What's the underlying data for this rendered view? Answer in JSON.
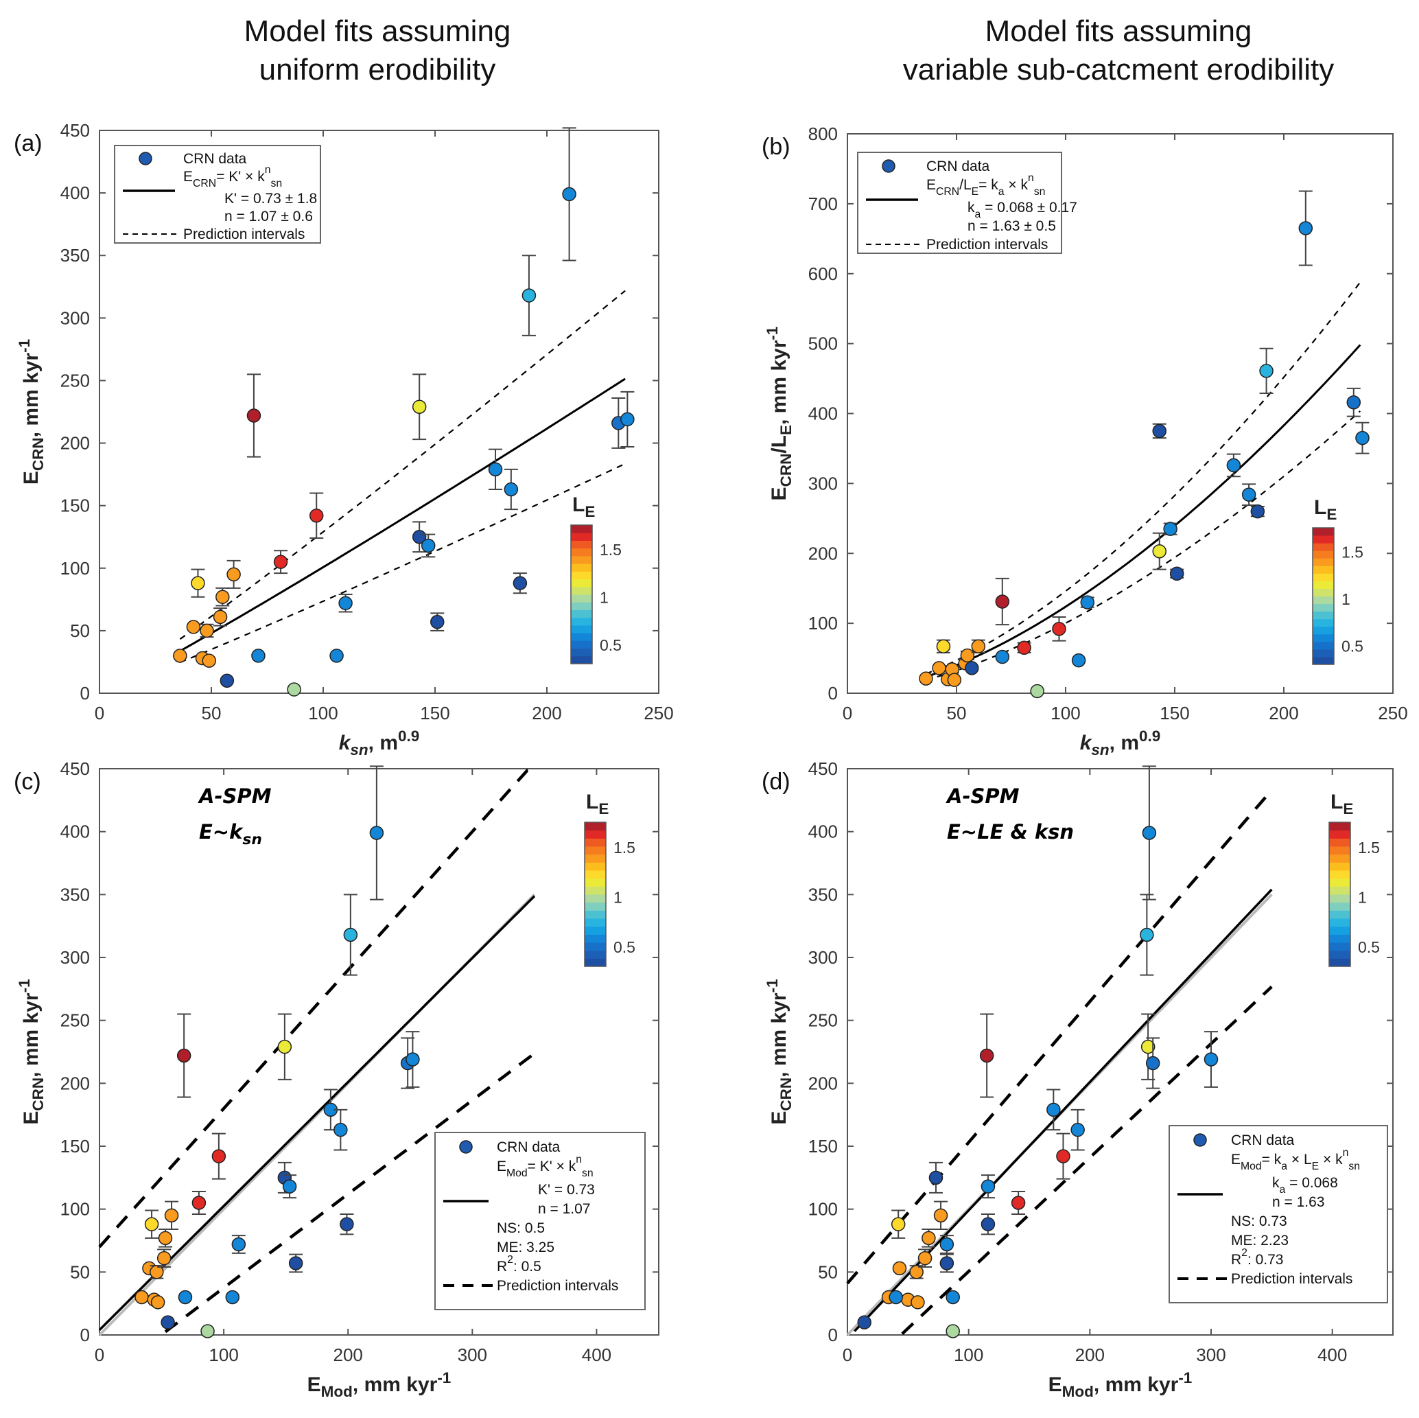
{
  "titles": {
    "left_line1": "Model fits assuming",
    "left_line2": "uniform erodibility",
    "right_line1": "Model fits assuming",
    "right_line2": "variable sub-catcment erodibility"
  },
  "colorbar": {
    "label": "L",
    "label_sub": "E",
    "range": [
      0.3,
      1.75
    ],
    "ticks": [
      "0.5",
      "1",
      "1.5"
    ],
    "tick_values": [
      0.5,
      1.0,
      1.5
    ],
    "colors": [
      "#1f4fa3",
      "#1d5fb5",
      "#1871c9",
      "#1386d8",
      "#17a0e0",
      "#29b4e0",
      "#4cc1d2",
      "#7fcfc0",
      "#acd9a0",
      "#cfe36a",
      "#ecea38",
      "#fcd92b",
      "#fcbe1e",
      "#f99b1f",
      "#f57d20",
      "#ef5a22",
      "#e12a26",
      "#b01f2a"
    ]
  },
  "chart_data": [
    {
      "id": "a",
      "type": "scatter",
      "panel_label": "(a)",
      "xlabel": "k",
      "xlabel_sub": "sn",
      "xlabel_rest": ", m",
      "xlabel_sup": "0.9",
      "ylabel": "E",
      "ylabel_sub": "CRN",
      "ylabel_rest": ", mm kyr",
      "ylabel_sup": "-1",
      "xlim": [
        0,
        250
      ],
      "ylim": [
        0,
        450
      ],
      "xticks": [
        0,
        50,
        100,
        150,
        200,
        250
      ],
      "yticks": [
        0,
        50,
        100,
        150,
        200,
        250,
        300,
        350,
        400,
        450
      ],
      "legend": {
        "position": "top-left",
        "entries": [
          {
            "type": "marker",
            "text": "CRN data"
          },
          {
            "type": "formula",
            "lhs": "E",
            "lhs_sub": "CRN",
            "rhs": "= K' × k",
            "rhs_sub": "sn",
            "rhs_sup": "n"
          },
          {
            "type": "line",
            "text": "K' = 0.73 ± 1.8"
          },
          {
            "type": "text",
            "text": "n = 1.07 ± 0.6"
          },
          {
            "type": "dashed",
            "text": "Prediction intervals"
          }
        ]
      },
      "fit": {
        "K": 0.73,
        "n": 1.07,
        "upper_factor": 1.28,
        "lower_factor": 0.73,
        "x_range": [
          36,
          235
        ]
      },
      "points": [
        {
          "x": 36,
          "y": 30,
          "err": 0,
          "le": 1.42
        },
        {
          "x": 42,
          "y": 53,
          "err": 0,
          "le": 1.42
        },
        {
          "x": 44,
          "y": 88,
          "err": 11,
          "le": 1.25
        },
        {
          "x": 46,
          "y": 28,
          "err": 0,
          "le": 1.42
        },
        {
          "x": 48,
          "y": 50,
          "err": 5,
          "le": 1.42
        },
        {
          "x": 49,
          "y": 26,
          "err": 0,
          "le": 1.42
        },
        {
          "x": 54,
          "y": 61,
          "err": 7,
          "le": 1.42
        },
        {
          "x": 55,
          "y": 77,
          "err": 7,
          "le": 1.42
        },
        {
          "x": 57,
          "y": 10,
          "err": 0,
          "le": 0.35
        },
        {
          "x": 60,
          "y": 95,
          "err": 11,
          "le": 1.42
        },
        {
          "x": 69,
          "y": 222,
          "err": 33,
          "le": 1.72
        },
        {
          "x": 71,
          "y": 30,
          "err": 0,
          "le": 0.62
        },
        {
          "x": 81,
          "y": 105,
          "err": 9,
          "le": 1.6
        },
        {
          "x": 87,
          "y": 3,
          "err": 0,
          "le": 0.95
        },
        {
          "x": 97,
          "y": 142,
          "err": 18,
          "le": 1.6
        },
        {
          "x": 106,
          "y": 30,
          "err": 0,
          "le": 0.62
        },
        {
          "x": 110,
          "y": 72,
          "err": 7,
          "le": 0.55
        },
        {
          "x": 143,
          "y": 229,
          "err": 26,
          "le": 1.12
        },
        {
          "x": 143,
          "y": 125,
          "err": 12,
          "le": 0.35
        },
        {
          "x": 147,
          "y": 118,
          "err": 9,
          "le": 0.55
        },
        {
          "x": 151,
          "y": 57,
          "err": 7,
          "le": 0.35
        },
        {
          "x": 177,
          "y": 179,
          "err": 16,
          "le": 0.62
        },
        {
          "x": 184,
          "y": 163,
          "err": 16,
          "le": 0.55
        },
        {
          "x": 188,
          "y": 88,
          "err": 8,
          "le": 0.35
        },
        {
          "x": 192,
          "y": 318,
          "err": 32,
          "le": 0.78
        },
        {
          "x": 210,
          "y": 399,
          "err": 53,
          "le": 0.62
        },
        {
          "x": 232,
          "y": 216,
          "err": 20,
          "le": 0.5
        },
        {
          "x": 236,
          "y": 219,
          "err": 22,
          "le": 0.62
        }
      ]
    },
    {
      "id": "b",
      "type": "scatter",
      "panel_label": "(b)",
      "xlabel": "k",
      "xlabel_sub": "sn",
      "xlabel_rest": ", m",
      "xlabel_sup": "0.9",
      "ylabel": "E",
      "ylabel_sub": "CRN",
      "ylabel_mid": "/L",
      "ylabel_sub2": "E",
      "ylabel_rest": ", mm kyr",
      "ylabel_sup": "-1",
      "xlim": [
        0,
        250
      ],
      "ylim": [
        0,
        800
      ],
      "xticks": [
        0,
        50,
        100,
        150,
        200,
        250
      ],
      "yticks": [
        0,
        100,
        200,
        300,
        400,
        500,
        600,
        700,
        800
      ],
      "legend": {
        "position": "top-left",
        "entries": [
          {
            "type": "marker",
            "text": "CRN data"
          },
          {
            "type": "formula",
            "lhs": "E",
            "lhs_sub": "CRN",
            "lhs_mid": "/L",
            "lhs_sub2": "E",
            "rhs": "= k",
            "rhs_sub1": "a",
            "rhs_mid": " × k",
            "rhs_sub": "sn",
            "rhs_sup": "n"
          },
          {
            "type": "line",
            "text": "= 0.068 ± 0.17",
            "prefix": "k",
            "prefix_sub": "a"
          },
          {
            "type": "text",
            "text": "n = 1.63 ± 0.5"
          },
          {
            "type": "dashed",
            "text": "Prediction intervals"
          }
        ]
      },
      "fit": {
        "K": 0.068,
        "n": 1.63,
        "upper_factor": 1.18,
        "lower_factor": 0.81,
        "x_range": [
          36,
          235
        ]
      },
      "points": [
        {
          "x": 36,
          "y": 21,
          "err": 0,
          "le": 1.42
        },
        {
          "x": 42,
          "y": 36,
          "err": 0,
          "le": 1.42
        },
        {
          "x": 44,
          "y": 67,
          "err": 9,
          "le": 1.25
        },
        {
          "x": 46,
          "y": 20,
          "err": 0,
          "le": 1.42
        },
        {
          "x": 48,
          "y": 34,
          "err": 5,
          "le": 1.42
        },
        {
          "x": 49,
          "y": 19,
          "err": 0,
          "le": 1.42
        },
        {
          "x": 54,
          "y": 43,
          "err": 6,
          "le": 1.42
        },
        {
          "x": 55,
          "y": 54,
          "err": 6,
          "le": 1.42
        },
        {
          "x": 57,
          "y": 36,
          "err": 0,
          "le": 0.35
        },
        {
          "x": 60,
          "y": 67,
          "err": 9,
          "le": 1.42
        },
        {
          "x": 71,
          "y": 131,
          "err": 33,
          "le": 1.72
        },
        {
          "x": 71,
          "y": 52,
          "err": 0,
          "le": 0.62
        },
        {
          "x": 81,
          "y": 65,
          "err": 7,
          "le": 1.6
        },
        {
          "x": 87,
          "y": 3,
          "err": 0,
          "le": 0.95
        },
        {
          "x": 97,
          "y": 92,
          "err": 17,
          "le": 1.6
        },
        {
          "x": 106,
          "y": 47,
          "err": 0,
          "le": 0.62
        },
        {
          "x": 110,
          "y": 130,
          "err": 7,
          "le": 0.55
        },
        {
          "x": 143,
          "y": 203,
          "err": 26,
          "le": 1.12
        },
        {
          "x": 143,
          "y": 375,
          "err": 10,
          "le": 0.35
        },
        {
          "x": 148,
          "y": 235,
          "err": 8,
          "le": 0.55
        },
        {
          "x": 151,
          "y": 171,
          "err": 6,
          "le": 0.35
        },
        {
          "x": 177,
          "y": 326,
          "err": 16,
          "le": 0.62
        },
        {
          "x": 184,
          "y": 284,
          "err": 15,
          "le": 0.55
        },
        {
          "x": 188,
          "y": 260,
          "err": 7,
          "le": 0.35
        },
        {
          "x": 192,
          "y": 461,
          "err": 32,
          "le": 0.78
        },
        {
          "x": 210,
          "y": 665,
          "err": 53,
          "le": 0.62
        },
        {
          "x": 232,
          "y": 416,
          "err": 20,
          "le": 0.5
        },
        {
          "x": 236,
          "y": 365,
          "err": 22,
          "le": 0.62
        }
      ]
    },
    {
      "id": "c",
      "type": "scatter",
      "panel_label": "(c)",
      "annotation_line1": "A-SPM",
      "annotation_line2": "E~k",
      "annotation_line2_sub": "sn",
      "xlabel": "E",
      "xlabel_sub": "Mod",
      "xlabel_rest": ", mm kyr",
      "xlabel_sup": "-1",
      "ylabel": "E",
      "ylabel_sub": "CRN",
      "ylabel_rest": ", mm kyr",
      "ylabel_sup": "-1",
      "xlim": [
        0,
        450
      ],
      "ylim": [
        0,
        450
      ],
      "xticks": [
        0,
        100,
        200,
        300,
        400
      ],
      "yticks": [
        0,
        50,
        100,
        150,
        200,
        250,
        300,
        350,
        400,
        450
      ],
      "legend": {
        "position": "bottom-right",
        "entries": [
          {
            "type": "marker",
            "text": "CRN data"
          },
          {
            "type": "formula",
            "lhs": "E",
            "lhs_sub": "Mod",
            "rhs": "= K' × k",
            "rhs_sub": "sn",
            "rhs_sup": "n"
          },
          {
            "type": "text",
            "text": "K' = 0.73"
          },
          {
            "type": "line",
            "text": "n = 1.07"
          },
          {
            "type": "text",
            "text": "NS: 0.5"
          },
          {
            "type": "text",
            "text": "ME: 3.25"
          },
          {
            "type": "text",
            "text": ": 0.5",
            "prefix": "R",
            "prefix_sup": "2"
          },
          {
            "type": "dashed",
            "text": "Prediction intervals"
          }
        ]
      },
      "fit_line": {
        "slope": 0.985,
        "intercept": 4,
        "x_range": [
          0,
          350
        ]
      },
      "one_to_one": {
        "x_range": [
          0,
          350
        ]
      },
      "pred_upper": {
        "slope": 1.1,
        "intercept": 70,
        "x_range": [
          0,
          350
        ]
      },
      "pred_lower": {
        "slope": 0.745,
        "intercept": -37,
        "x_range": [
          48,
          350
        ]
      },
      "points": [
        {
          "x": 34,
          "y": 30,
          "err": 0,
          "le": 1.42
        },
        {
          "x": 40,
          "y": 53,
          "err": 0,
          "le": 1.42
        },
        {
          "x": 42,
          "y": 88,
          "err": 11,
          "le": 1.25
        },
        {
          "x": 44,
          "y": 28,
          "err": 0,
          "le": 1.42
        },
        {
          "x": 46,
          "y": 50,
          "err": 5,
          "le": 1.42
        },
        {
          "x": 47,
          "y": 26,
          "err": 0,
          "le": 1.42
        },
        {
          "x": 52,
          "y": 61,
          "err": 7,
          "le": 1.42
        },
        {
          "x": 53,
          "y": 77,
          "err": 7,
          "le": 1.42
        },
        {
          "x": 55,
          "y": 10,
          "err": 0,
          "le": 0.35
        },
        {
          "x": 58,
          "y": 95,
          "err": 11,
          "le": 1.42
        },
        {
          "x": 68,
          "y": 222,
          "err": 33,
          "le": 1.72
        },
        {
          "x": 69,
          "y": 30,
          "err": 0,
          "le": 0.62
        },
        {
          "x": 80,
          "y": 105,
          "err": 9,
          "le": 1.6
        },
        {
          "x": 87,
          "y": 3,
          "err": 0,
          "le": 0.95
        },
        {
          "x": 96,
          "y": 142,
          "err": 18,
          "le": 1.6
        },
        {
          "x": 107,
          "y": 30,
          "err": 0,
          "le": 0.62
        },
        {
          "x": 112,
          "y": 72,
          "err": 7,
          "le": 0.55
        },
        {
          "x": 149,
          "y": 229,
          "err": 26,
          "le": 1.12
        },
        {
          "x": 149,
          "y": 125,
          "err": 12,
          "le": 0.35
        },
        {
          "x": 153,
          "y": 118,
          "err": 9,
          "le": 0.55
        },
        {
          "x": 158,
          "y": 57,
          "err": 7,
          "le": 0.35
        },
        {
          "x": 186,
          "y": 179,
          "err": 16,
          "le": 0.62
        },
        {
          "x": 194,
          "y": 163,
          "err": 16,
          "le": 0.55
        },
        {
          "x": 199,
          "y": 88,
          "err": 8,
          "le": 0.35
        },
        {
          "x": 202,
          "y": 318,
          "err": 32,
          "le": 0.78
        },
        {
          "x": 223,
          "y": 399,
          "err": 53,
          "le": 0.62
        },
        {
          "x": 248,
          "y": 216,
          "err": 20,
          "le": 0.5
        },
        {
          "x": 252,
          "y": 219,
          "err": 22,
          "le": 0.62
        }
      ]
    },
    {
      "id": "d",
      "type": "scatter",
      "panel_label": "(d)",
      "annotation_line1": "A-SPM",
      "annotation_line2": "E~LE & ksn",
      "annotation_line2_sub": "",
      "xlabel": "E",
      "xlabel_sub": "Mod",
      "xlabel_rest": ", mm kyr",
      "xlabel_sup": "-1",
      "ylabel": "E",
      "ylabel_sub": "CRN",
      "ylabel_rest": ", mm kyr",
      "ylabel_sup": "-1",
      "xlim": [
        0,
        450
      ],
      "ylim": [
        0,
        450
      ],
      "xticks": [
        0,
        100,
        200,
        300,
        400
      ],
      "yticks": [
        0,
        50,
        100,
        150,
        200,
        250,
        300,
        350,
        400,
        450
      ],
      "legend": {
        "position": "bottom-right",
        "entries": [
          {
            "type": "marker",
            "text": "CRN data"
          },
          {
            "type": "formula",
            "lhs": "E",
            "lhs_sub": "Mod",
            "rhs": "= k",
            "rhs_sub1": "a",
            "rhs_mid": " × L",
            "rhs_sub2": "E",
            "rhs_mid2": " × k",
            "rhs_sub": "sn",
            "rhs_sup": "n"
          },
          {
            "type": "text",
            "text": "= 0.068",
            "prefix": "k",
            "prefix_sub": "a"
          },
          {
            "type": "line",
            "text": "n = 1.63"
          },
          {
            "type": "text",
            "text": "NS: 0.73"
          },
          {
            "type": "text",
            "text": "ME: 2.23"
          },
          {
            "type": "text",
            "text": ": 0.73",
            "prefix": "R",
            "prefix_sup": "2"
          },
          {
            "type": "dashed",
            "text": "Prediction intervals"
          }
        ]
      },
      "fit_line": {
        "slope": 1.02,
        "intercept": -3,
        "x_range": [
          0,
          350
        ]
      },
      "one_to_one": {
        "x_range": [
          0,
          350
        ]
      },
      "pred_upper": {
        "slope": 1.12,
        "intercept": 41,
        "x_range": [
          0,
          350
        ]
      },
      "pred_lower": {
        "slope": 0.905,
        "intercept": -40,
        "x_range": [
          40,
          350
        ]
      },
      "points": [
        {
          "x": 34,
          "y": 30,
          "err": 0,
          "le": 1.42
        },
        {
          "x": 43,
          "y": 53,
          "err": 0,
          "le": 1.42
        },
        {
          "x": 42,
          "y": 88,
          "err": 11,
          "le": 1.25
        },
        {
          "x": 50,
          "y": 28,
          "err": 0,
          "le": 1.42
        },
        {
          "x": 57,
          "y": 50,
          "err": 5,
          "le": 1.42
        },
        {
          "x": 58,
          "y": 26,
          "err": 0,
          "le": 1.42
        },
        {
          "x": 64,
          "y": 61,
          "err": 7,
          "le": 1.42
        },
        {
          "x": 67,
          "y": 77,
          "err": 7,
          "le": 1.42
        },
        {
          "x": 14,
          "y": 10,
          "err": 0,
          "le": 0.35
        },
        {
          "x": 77,
          "y": 95,
          "err": 11,
          "le": 1.42
        },
        {
          "x": 115,
          "y": 222,
          "err": 33,
          "le": 1.72
        },
        {
          "x": 40,
          "y": 30,
          "err": 0,
          "le": 0.62
        },
        {
          "x": 141,
          "y": 105,
          "err": 9,
          "le": 1.6
        },
        {
          "x": 87,
          "y": 3,
          "err": 0,
          "le": 0.95
        },
        {
          "x": 178,
          "y": 142,
          "err": 18,
          "le": 1.6
        },
        {
          "x": 87,
          "y": 30,
          "err": 0,
          "le": 0.62
        },
        {
          "x": 82,
          "y": 72,
          "err": 7,
          "le": 0.55
        },
        {
          "x": 248,
          "y": 229,
          "err": 26,
          "le": 1.12
        },
        {
          "x": 73,
          "y": 125,
          "err": 12,
          "le": 0.35
        },
        {
          "x": 116,
          "y": 118,
          "err": 9,
          "le": 0.55
        },
        {
          "x": 82,
          "y": 57,
          "err": 7,
          "le": 0.35
        },
        {
          "x": 170,
          "y": 179,
          "err": 16,
          "le": 0.62
        },
        {
          "x": 190,
          "y": 163,
          "err": 16,
          "le": 0.55
        },
        {
          "x": 116,
          "y": 88,
          "err": 8,
          "le": 0.35
        },
        {
          "x": 247,
          "y": 318,
          "err": 32,
          "le": 0.78
        },
        {
          "x": 249,
          "y": 399,
          "err": 53,
          "le": 0.62
        },
        {
          "x": 252,
          "y": 216,
          "err": 20,
          "le": 0.5
        },
        {
          "x": 300,
          "y": 219,
          "err": 22,
          "le": 0.62
        }
      ]
    }
  ]
}
